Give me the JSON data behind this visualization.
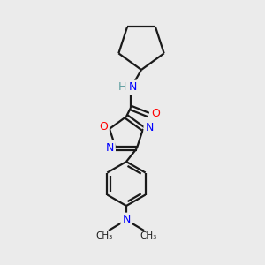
{
  "background_color": "#ebebeb",
  "bond_color": "#1a1a1a",
  "atom_colors": {
    "N": "#0000ff",
    "O": "#ff0000",
    "H": "#5f9ea0",
    "C": "#1a1a1a"
  },
  "figsize": [
    3.0,
    3.0
  ],
  "dpi": 100
}
